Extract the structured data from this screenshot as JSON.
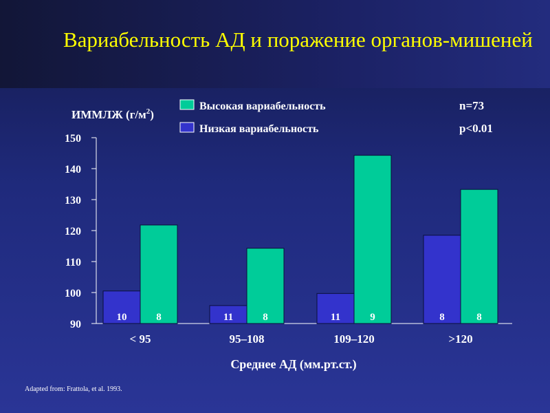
{
  "slide": {
    "title": "Вариабельность АД и поражение органов-мишеней",
    "footnote": "Adapted from:  Frattola, et al. 1993."
  },
  "chart_data": {
    "type": "bar",
    "ylabel": "ИММЛЖ (г/м²)",
    "ylabel_main": "ИММЛЖ (г/м",
    "ylabel_sup": "2",
    "ylabel_close": ")",
    "xlabel": "Среднее АД (мм.рт.ст.)",
    "ylim": [
      90,
      150
    ],
    "yticks": [
      "150",
      "140",
      "130",
      "120",
      "110",
      "100",
      "90"
    ],
    "categories": [
      "< 95",
      "95–108",
      "109–120",
      ">120"
    ],
    "series": [
      {
        "name": "Низкая вариабельность",
        "color": "#3333cc",
        "values": [
          100.5,
          95.8,
          99.7,
          118.5
        ],
        "n_labels": [
          "10",
          "11",
          "11",
          "8"
        ]
      },
      {
        "name": "Высокая вариабельность",
        "color": "#00cc99",
        "values": [
          121.8,
          114.3,
          144.3,
          133.3
        ],
        "n_labels": [
          "8",
          "8",
          "9",
          "8"
        ]
      }
    ],
    "legend_position": "top",
    "annotations": {
      "n": "n=73",
      "p": "p<0.01"
    }
  }
}
